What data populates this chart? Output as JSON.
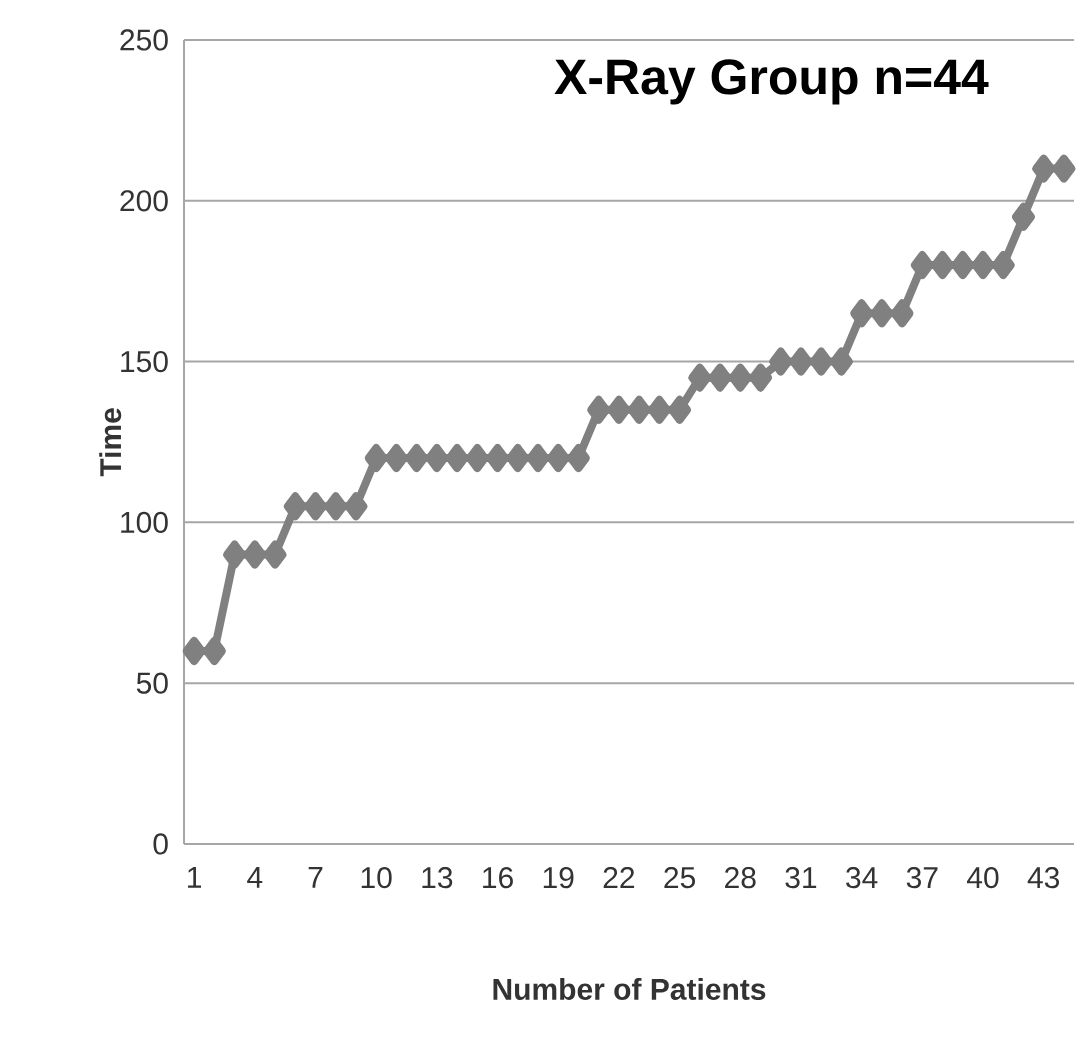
{
  "chart_data": {
    "type": "line",
    "title": "X-Ray Group n=44",
    "xlabel": "Number of Patients",
    "ylabel": "Time",
    "categories": [
      "1",
      null,
      null,
      "4",
      null,
      null,
      "7",
      null,
      null,
      "10",
      null,
      null,
      "13",
      null,
      null,
      "16",
      null,
      null,
      "19",
      null,
      null,
      "22",
      null,
      null,
      "25",
      null,
      null,
      "28",
      null,
      null,
      "31",
      null,
      null,
      "34",
      null,
      null,
      "37",
      null,
      null,
      "40",
      null,
      null,
      "43",
      null
    ],
    "values": [
      60,
      60,
      90,
      90,
      90,
      105,
      105,
      105,
      105,
      120,
      120,
      120,
      120,
      120,
      120,
      120,
      120,
      120,
      120,
      120,
      135,
      135,
      135,
      135,
      135,
      145,
      145,
      145,
      145,
      150,
      150,
      150,
      150,
      165,
      165,
      165,
      180,
      180,
      180,
      180,
      180,
      195,
      210,
      210
    ],
    "color": "#808080",
    "ylim": [
      0,
      250
    ],
    "yticks": [
      0,
      50,
      100,
      150,
      200,
      250
    ],
    "grid": "y",
    "marker": "diamond",
    "line_style": "solid"
  }
}
